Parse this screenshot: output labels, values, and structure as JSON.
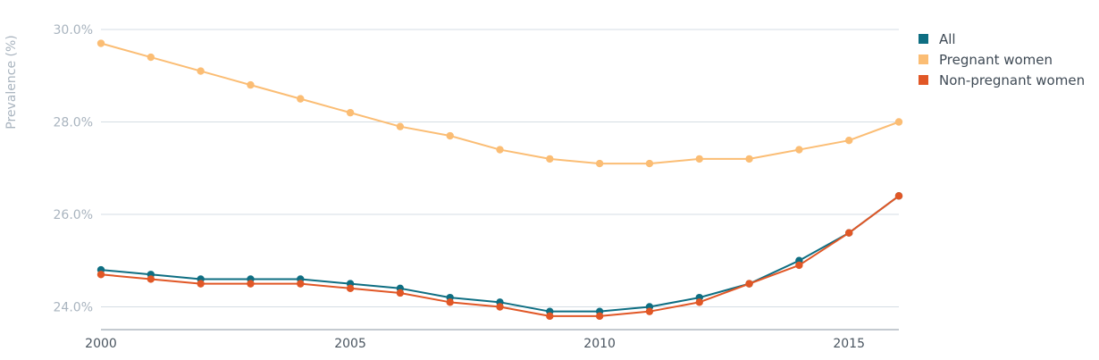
{
  "chart_data": {
    "type": "line",
    "title": "",
    "xlabel": "",
    "ylabel": "Prevalence (%)",
    "x": [
      2000,
      2001,
      2002,
      2003,
      2004,
      2005,
      2006,
      2007,
      2008,
      2009,
      2010,
      2011,
      2012,
      2013,
      2014,
      2015,
      2016
    ],
    "xticks": [
      "2000",
      "2005",
      "2010",
      "2015"
    ],
    "yticks": [
      "24.0%",
      "26.0%",
      "28.0%",
      "30.0%"
    ],
    "ylim": [
      23.5,
      30.0
    ],
    "xlim": [
      2000,
      2016
    ],
    "grid": true,
    "legend_position": "right",
    "series": [
      {
        "name": "All",
        "color": "#0e6e82",
        "values": [
          24.8,
          24.7,
          24.6,
          24.6,
          24.6,
          24.5,
          24.4,
          24.2,
          24.1,
          23.9,
          23.9,
          24.0,
          24.2,
          24.5,
          25.0,
          25.6,
          26.4
        ]
      },
      {
        "name": "Pregnant women",
        "color": "#fbbd74",
        "values": [
          29.7,
          29.4,
          29.1,
          28.8,
          28.5,
          28.2,
          27.9,
          27.7,
          27.4,
          27.2,
          27.1,
          27.1,
          27.2,
          27.2,
          27.4,
          27.6,
          28.0
        ]
      },
      {
        "name": "Non-pregnant women",
        "color": "#e15726",
        "values": [
          24.7,
          24.6,
          24.5,
          24.5,
          24.5,
          24.4,
          24.3,
          24.1,
          24.0,
          23.8,
          23.8,
          23.9,
          24.1,
          24.5,
          24.9,
          25.6,
          26.4
        ]
      }
    ]
  }
}
